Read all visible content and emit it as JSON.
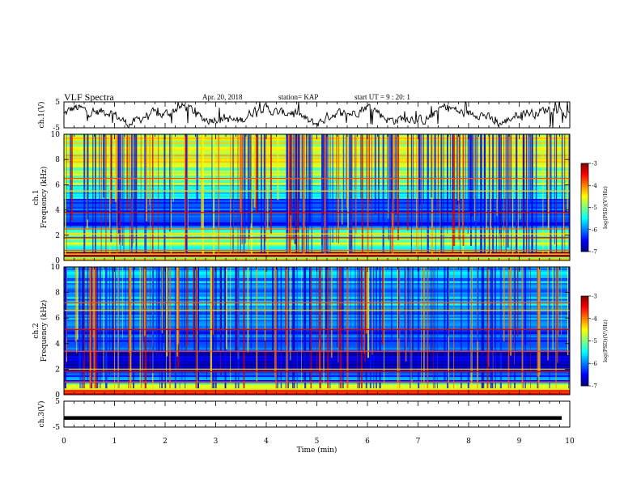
{
  "header": {
    "title": "VLF Spectra",
    "date": "Apr. 20, 2018",
    "station": "station= KAP",
    "start_ut": "start  UT =  9 : 20: 1"
  },
  "chart_data": [
    {
      "type": "line",
      "panel": "waveform-ch1",
      "ylabel": "ch.1(V)",
      "ylim": [
        -5,
        5
      ],
      "yticks": [
        "5",
        "-5"
      ],
      "xlim": [
        0,
        10
      ],
      "series": [
        {
          "values_description_skip": "",
          "trace": "noisy waveform around 0 V"
        }
      ]
    },
    {
      "type": "heatmap",
      "panel": "spectrogram-ch1",
      "ylabel": "ch.1\nFrequency (kHz)",
      "ylabel_line1": "ch.1",
      "ylabel_line2": "Frequency (kHz)",
      "ylim": [
        0,
        10
      ],
      "yticks": [
        "0",
        "2",
        "4",
        "6",
        "8",
        "10"
      ],
      "xlim": [
        0,
        10
      ],
      "colorbar": {
        "label": "log(PSD)(V²/Hz)",
        "range": [
          -7,
          -3
        ],
        "ticks": [
          "-3",
          "-4",
          "-5",
          "-6",
          "-7"
        ]
      },
      "bands": [
        {
          "from": 0.0,
          "to": 0.3,
          "level": -4.5
        },
        {
          "from": 0.3,
          "to": 0.7,
          "level": -3.4
        },
        {
          "from": 0.7,
          "to": 1.3,
          "level": -5.2
        },
        {
          "from": 1.3,
          "to": 2.2,
          "level": -5.0
        },
        {
          "from": 2.2,
          "to": 2.6,
          "level": -5.6
        },
        {
          "from": 2.6,
          "to": 3.3,
          "level": -6.4
        },
        {
          "from": 3.3,
          "to": 4.9,
          "level": -6.1
        },
        {
          "from": 4.9,
          "to": 6.0,
          "level": -5.4
        },
        {
          "from": 6.0,
          "to": 7.5,
          "level": -4.9
        },
        {
          "from": 7.5,
          "to": 10.0,
          "level": -4.6
        }
      ],
      "lines_khz": [
        0.5,
        0.8,
        1.8,
        2.1,
        2.5,
        3.8,
        5.5,
        6.5
      ]
    },
    {
      "type": "heatmap",
      "panel": "spectrogram-ch2",
      "ylabel_line1": "ch.2",
      "ylabel_line2": "Frequency (kHz)",
      "ylim": [
        0,
        10
      ],
      "yticks": [
        "0",
        "2",
        "4",
        "6",
        "8",
        "10"
      ],
      "xlim": [
        0,
        10
      ],
      "colorbar": {
        "label": "log(PSD)(V²/Hz)",
        "range": [
          -7,
          -3
        ],
        "ticks": [
          "-3",
          "-4",
          "-5",
          "-6",
          "-7"
        ]
      },
      "bands": [
        {
          "from": 0.0,
          "to": 0.4,
          "level": -3.8
        },
        {
          "from": 0.4,
          "to": 0.9,
          "level": -4.8
        },
        {
          "from": 0.9,
          "to": 2.0,
          "level": -6.2
        },
        {
          "from": 2.0,
          "to": 3.4,
          "level": -6.8
        },
        {
          "from": 3.4,
          "to": 5.0,
          "level": -6.3
        },
        {
          "from": 5.0,
          "to": 7.0,
          "level": -6.0
        },
        {
          "from": 7.0,
          "to": 10.0,
          "level": -5.8
        }
      ],
      "lines_khz": [
        0.4,
        1.0,
        1.8,
        2.0,
        3.4,
        5.1,
        6.6,
        7.2
      ]
    },
    {
      "type": "line",
      "panel": "waveform-ch3",
      "ylabel": "ch.3(V)",
      "ylim": [
        -5,
        5
      ],
      "yticks": [
        "5",
        "-5"
      ],
      "xlim": [
        0,
        10
      ],
      "xlabel": "Time (min)",
      "xticks": [
        "0",
        "1",
        "2",
        "3",
        "4",
        "5",
        "6",
        "7",
        "8",
        "9",
        "10"
      ],
      "series": [
        {
          "constant_value": -1.5
        }
      ]
    }
  ]
}
